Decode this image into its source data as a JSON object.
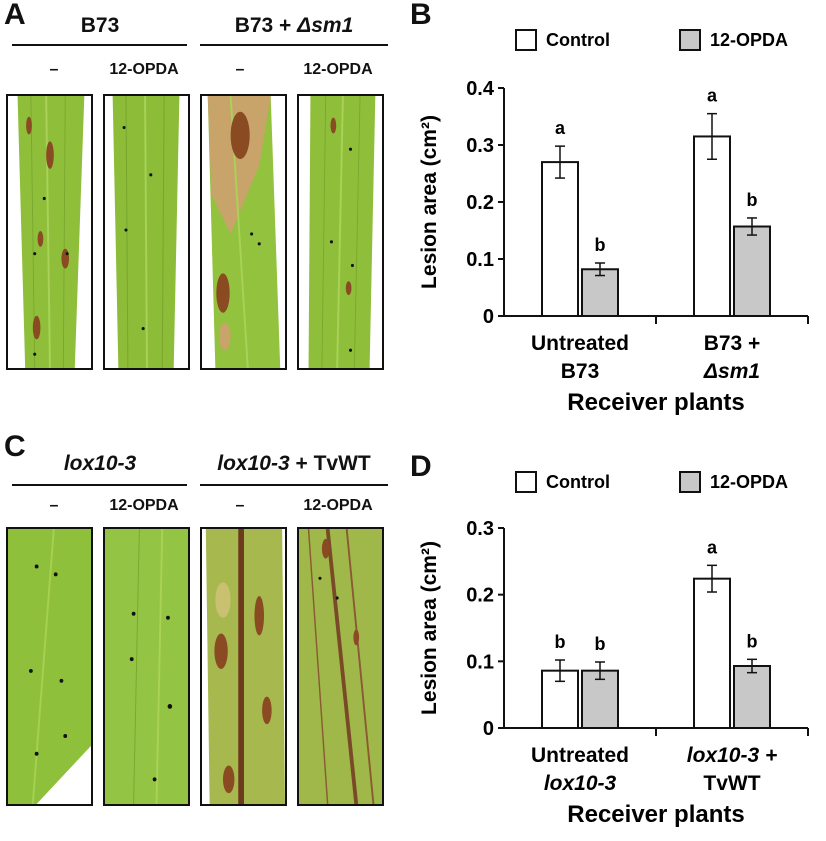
{
  "panels": {
    "A": {
      "letter": "A",
      "groups": [
        {
          "title": "B73",
          "title_suffix": ""
        },
        {
          "title": "B73 + ",
          "title_suffix": "Δsm1"
        }
      ],
      "treatments": [
        "–",
        "12-OPDA",
        "–",
        "12-OPDA"
      ]
    },
    "B": {
      "letter": "B"
    },
    "C": {
      "letter": "C",
      "groups": [
        {
          "title": "lox10-3",
          "title_suffix": ""
        },
        {
          "title": "lox10-3",
          "title_suffix": " + TvWT"
        }
      ],
      "treatments": [
        "–",
        "12-OPDA",
        "–",
        "12-OPDA"
      ]
    },
    "D": {
      "letter": "D"
    }
  },
  "colors": {
    "control_fill": "#ffffff",
    "opda_fill": "#c8c8c8",
    "bar_stroke": "#111111",
    "leaf_green": "#8fbf3a",
    "lesion_brown": "#8a4a22"
  },
  "chart_data": [
    {
      "panel": "B",
      "type": "bar",
      "legend": [
        "Control",
        "12-OPDA"
      ],
      "legend_position": "top",
      "ylabel": "Lesion area (cm²)",
      "ylim": [
        0,
        0.4
      ],
      "yticks": [
        "0",
        "0.1",
        "0.2",
        "0.3",
        "0.4"
      ],
      "xlabel": "Receiver plants",
      "categories": [
        {
          "line1": "Untreated",
          "line2": "B73",
          "line2_italic": false
        },
        {
          "line1": "B73 +",
          "line2": "Δsm1",
          "line2_italic": true
        }
      ],
      "series": [
        {
          "name": "Control",
          "values": [
            0.27,
            0.315
          ],
          "errors": [
            0.028,
            0.04
          ],
          "letters": [
            "a",
            "a"
          ]
        },
        {
          "name": "12-OPDA",
          "values": [
            0.082,
            0.157
          ],
          "errors": [
            0.011,
            0.015
          ],
          "letters": [
            "b",
            "b"
          ]
        }
      ]
    },
    {
      "panel": "D",
      "type": "bar",
      "legend": [
        "Control",
        "12-OPDA"
      ],
      "legend_position": "top",
      "ylabel": "Lesion area (cm²)",
      "ylim": [
        0,
        0.3
      ],
      "yticks": [
        "0",
        "0.1",
        "0.2",
        "0.3"
      ],
      "xlabel": "Receiver plants",
      "categories": [
        {
          "line1": "Untreated",
          "line2": "lox10-3",
          "line1_italic": false,
          "line2_italic": true
        },
        {
          "line1": "lox10-3 +",
          "line2": "TvWT",
          "line1_italic": true,
          "line2_italic": false
        }
      ],
      "series": [
        {
          "name": "Control",
          "values": [
            0.086,
            0.224
          ],
          "errors": [
            0.016,
            0.02
          ],
          "letters": [
            "b",
            "a"
          ]
        },
        {
          "name": "12-OPDA",
          "values": [
            0.086,
            0.093
          ],
          "errors": [
            0.013,
            0.01
          ],
          "letters": [
            "b",
            "b"
          ]
        }
      ]
    }
  ]
}
